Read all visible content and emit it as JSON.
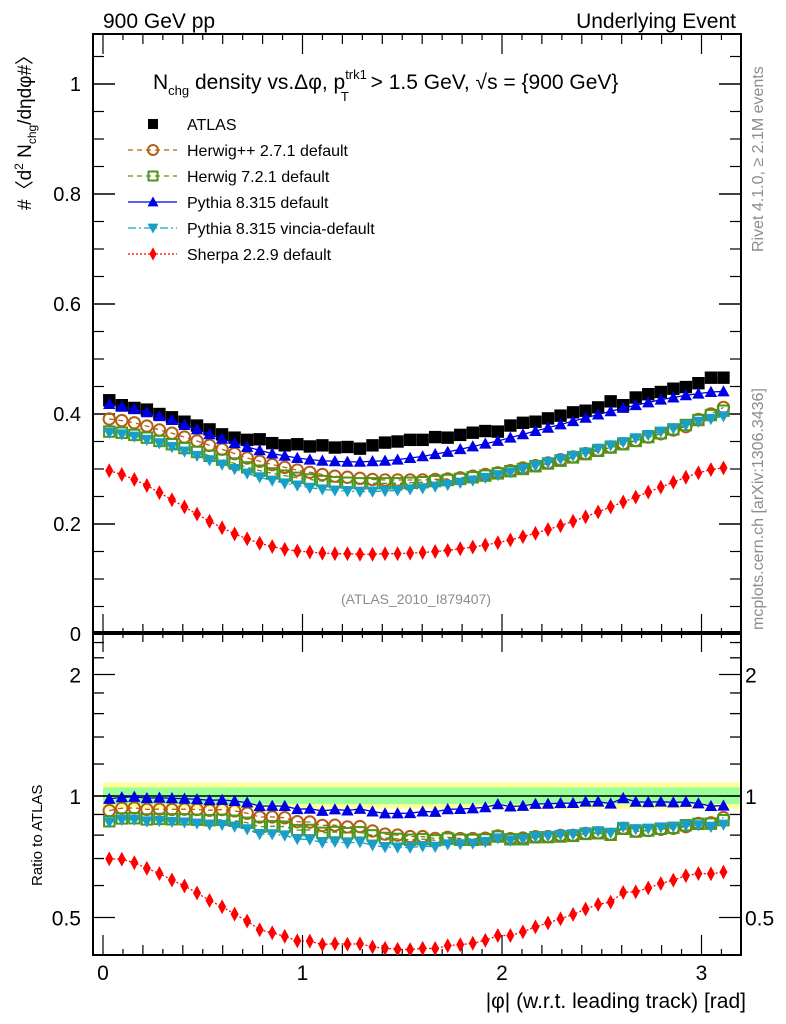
{
  "header": {
    "left": "900 GeV pp",
    "right": "Underlying Event"
  },
  "side_labels": {
    "rivet": "Rivet 4.1.0, ≥ 2.1M events",
    "mcplots": "mcplots.cern.ch [arXiv:1306.3436]"
  },
  "watermark": "(ATLAS_2010_I879407)",
  "chart_data": [
    {
      "type": "scatter",
      "panel": "main",
      "title_parts": {
        "n": "N",
        "n_sub": "chg",
        "mid": " density vs.Δφ, p",
        "p_sup": "trk1",
        "p_sub": "T",
        "tail": " > 1.5 GeV, ",
        "sqrt": "√s",
        "end": " = {900 GeV}"
      },
      "ylabel": "#〈d² N_chg/dηdφ#〉",
      "ylabel_parts": {
        "a": "#〈d",
        "sup": "2",
        "b": " N",
        "sub": "chg",
        "c": "/dηdφ#〉"
      },
      "xlim": [
        -0.07,
        3.2
      ],
      "ylim": [
        0,
        1.08
      ],
      "yticks": [
        0,
        0.2,
        0.4,
        0.6,
        0.8,
        1
      ],
      "ytick_labels": [
        "0",
        "0.2",
        "0.4",
        "0.6",
        "0.8",
        "1"
      ],
      "legend_position": "top-left",
      "bins": 50,
      "x_range": [
        0,
        3.14159
      ],
      "series": [
        {
          "name": "ATLAS",
          "marker": "square",
          "color": "#000000",
          "line": "none",
          "values": [
            0.425,
            0.416,
            0.411,
            0.408,
            0.4,
            0.394,
            0.386,
            0.379,
            0.372,
            0.363,
            0.357,
            0.353,
            0.354,
            0.347,
            0.343,
            0.345,
            0.341,
            0.343,
            0.339,
            0.34,
            0.337,
            0.343,
            0.348,
            0.35,
            0.353,
            0.353,
            0.358,
            0.357,
            0.362,
            0.366,
            0.369,
            0.368,
            0.379,
            0.384,
            0.386,
            0.392,
            0.397,
            0.403,
            0.406,
            0.412,
            0.423,
            0.416,
            0.43,
            0.436,
            0.44,
            0.446,
            0.449,
            0.456,
            0.466,
            0.466
          ]
        },
        {
          "name": "Herwig++ 2.7.1 default",
          "marker": "circle-open",
          "color": "#b25f14",
          "line": "dashed",
          "values": [
            0.391,
            0.388,
            0.384,
            0.378,
            0.371,
            0.365,
            0.358,
            0.351,
            0.343,
            0.336,
            0.328,
            0.32,
            0.314,
            0.308,
            0.303,
            0.298,
            0.294,
            0.29,
            0.287,
            0.285,
            0.283,
            0.281,
            0.28,
            0.28,
            0.28,
            0.28,
            0.281,
            0.282,
            0.284,
            0.287,
            0.29,
            0.293,
            0.297,
            0.302,
            0.306,
            0.311,
            0.317,
            0.322,
            0.328,
            0.334,
            0.34,
            0.346,
            0.352,
            0.358,
            0.364,
            0.371,
            0.377,
            0.39,
            0.4,
            0.412
          ]
        },
        {
          "name": "Herwig 7.2.1 default",
          "marker": "square-open",
          "color": "#4c9619",
          "line": "dashed",
          "values": [
            0.368,
            0.366,
            0.362,
            0.357,
            0.351,
            0.345,
            0.338,
            0.331,
            0.324,
            0.317,
            0.31,
            0.303,
            0.297,
            0.292,
            0.288,
            0.284,
            0.281,
            0.278,
            0.276,
            0.275,
            0.274,
            0.274,
            0.274,
            0.274,
            0.275,
            0.276,
            0.278,
            0.28,
            0.282,
            0.285,
            0.288,
            0.292,
            0.296,
            0.3,
            0.305,
            0.31,
            0.315,
            0.321,
            0.327,
            0.333,
            0.339,
            0.345,
            0.351,
            0.358,
            0.365,
            0.372,
            0.38,
            0.389,
            0.398,
            0.406
          ]
        },
        {
          "name": "Pythia 8.315 default",
          "marker": "triangle-up",
          "color": "#0000e6",
          "line": "solid",
          "values": [
            0.418,
            0.413,
            0.409,
            0.403,
            0.396,
            0.389,
            0.38,
            0.372,
            0.363,
            0.355,
            0.347,
            0.34,
            0.334,
            0.328,
            0.324,
            0.32,
            0.317,
            0.315,
            0.314,
            0.313,
            0.313,
            0.314,
            0.315,
            0.317,
            0.32,
            0.323,
            0.327,
            0.331,
            0.336,
            0.341,
            0.346,
            0.351,
            0.357,
            0.363,
            0.369,
            0.375,
            0.381,
            0.387,
            0.393,
            0.399,
            0.405,
            0.411,
            0.416,
            0.421,
            0.426,
            0.43,
            0.434,
            0.437,
            0.44,
            0.441
          ]
        },
        {
          "name": "Pythia 8.315 vincia-default",
          "marker": "triangle-down",
          "color": "#199fc7",
          "line": "dashdot",
          "values": [
            0.366,
            0.363,
            0.359,
            0.353,
            0.347,
            0.34,
            0.332,
            0.324,
            0.316,
            0.308,
            0.3,
            0.292,
            0.285,
            0.279,
            0.274,
            0.27,
            0.266,
            0.263,
            0.261,
            0.26,
            0.259,
            0.259,
            0.26,
            0.261,
            0.263,
            0.265,
            0.268,
            0.271,
            0.275,
            0.279,
            0.284,
            0.289,
            0.294,
            0.3,
            0.306,
            0.312,
            0.318,
            0.324,
            0.33,
            0.337,
            0.343,
            0.349,
            0.356,
            0.362,
            0.368,
            0.374,
            0.38,
            0.386,
            0.391,
            0.396
          ]
        },
        {
          "name": "Sherpa 2.2.9 default",
          "marker": "diamond",
          "color": "#ff0000",
          "line": "dotted",
          "values": [
            0.297,
            0.29,
            0.281,
            0.27,
            0.257,
            0.244,
            0.231,
            0.218,
            0.205,
            0.193,
            0.182,
            0.173,
            0.165,
            0.159,
            0.154,
            0.151,
            0.149,
            0.147,
            0.146,
            0.146,
            0.145,
            0.145,
            0.146,
            0.146,
            0.147,
            0.148,
            0.15,
            0.152,
            0.155,
            0.158,
            0.162,
            0.166,
            0.171,
            0.177,
            0.183,
            0.19,
            0.197,
            0.205,
            0.213,
            0.222,
            0.231,
            0.24,
            0.249,
            0.258,
            0.267,
            0.276,
            0.285,
            0.293,
            0.299,
            0.302
          ]
        }
      ]
    },
    {
      "type": "scatter",
      "panel": "ratio",
      "ylabel": "Ratio to ATLAS",
      "xlabel": "|φ| (w.r.t. leading track) [rad]",
      "yscale": "log",
      "ylim": [
        0.4,
        2.55
      ],
      "yticks_labeled": [
        0.5,
        1,
        2
      ],
      "ytick_labels": [
        "0.5",
        "1",
        "2"
      ],
      "xticks": [
        0,
        1,
        2,
        3
      ],
      "xtick_labels": [
        "0",
        "1",
        "2",
        "3"
      ],
      "reference_line": 1,
      "bands": [
        {
          "name": "total-uncertainty",
          "color": "#ffff99",
          "lo": 0.93,
          "hi": 1.08
        },
        {
          "name": "stat-uncertainty",
          "color": "#99ff99",
          "lo": 0.955,
          "hi": 1.05
        }
      ]
    }
  ]
}
